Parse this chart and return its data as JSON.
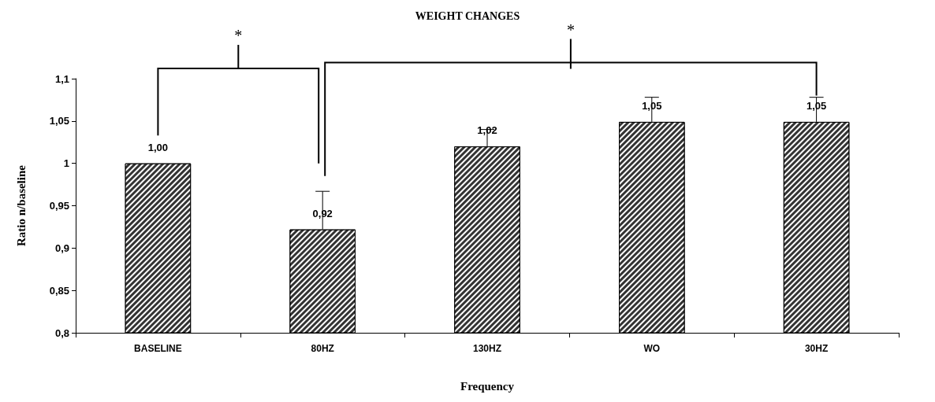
{
  "chart_data": {
    "type": "bar",
    "title": "WEIGHT CHANGES",
    "xlabel": "Frequency",
    "ylabel": "Ratio n/baseline",
    "categories": [
      "BASELINE",
      "80HZ",
      "130HZ",
      "WO",
      "30HZ"
    ],
    "values": [
      1.0,
      0.922,
      1.02,
      1.049,
      1.049
    ],
    "value_labels": [
      "1,00",
      "0,92",
      "1,02",
      "1,05",
      "1,05"
    ],
    "errors": [
      null,
      [
        0.922,
        0.967
      ],
      [
        1.02,
        1.04
      ],
      [
        1.049,
        1.078
      ],
      [
        1.049,
        1.078
      ]
    ],
    "color": "#333333",
    "ylim": [
      0.8,
      1.1
    ],
    "yticks": [
      {
        "value": 0.8,
        "label": "0,8"
      },
      {
        "value": 0.85,
        "label": "0,85"
      },
      {
        "value": 0.9,
        "label": "0,9"
      },
      {
        "value": 0.95,
        "label": "0,95"
      },
      {
        "value": 1,
        "label": "1"
      },
      {
        "value": 1.05,
        "label": "1,05"
      },
      {
        "value": 1.1,
        "label": "1,1"
      }
    ],
    "grid": false,
    "annotations": [
      "*",
      "*"
    ]
  }
}
